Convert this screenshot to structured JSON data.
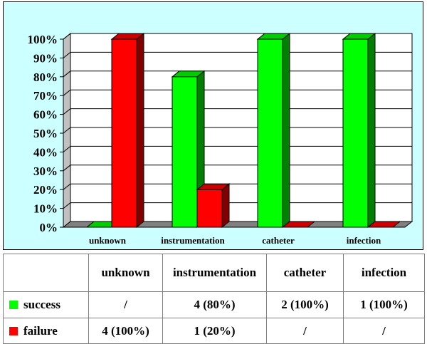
{
  "chart_data": {
    "type": "bar",
    "categories": [
      "unknown",
      "instrumentation",
      "catheter",
      "infection"
    ],
    "series": [
      {
        "name": "success",
        "values": [
          0,
          80,
          100,
          100
        ],
        "color": "#00ff00",
        "side_color": "#008000",
        "top_color": "#00cc00"
      },
      {
        "name": "failure",
        "values": [
          100,
          20,
          0,
          0
        ],
        "color": "#ff0000",
        "side_color": "#800000",
        "top_color": "#cc0000"
      }
    ],
    "y_ticks": [
      "0%",
      "10%",
      "20%",
      "30%",
      "40%",
      "50%",
      "60%",
      "70%",
      "80%",
      "90%",
      "100%"
    ],
    "ylim": [
      0,
      100
    ],
    "grid": true,
    "wall_color": "#ffffff",
    "floor_color": "#808080"
  },
  "table": {
    "header": [
      "",
      "unknown",
      "instrumentation",
      "catheter",
      "infection"
    ],
    "rows": [
      {
        "label": "success",
        "color": "#00ff00",
        "cells": [
          "/",
          "4 (80%)",
          "2 (100%)",
          "1 (100%)"
        ]
      },
      {
        "label": "failure",
        "color": "#ff0000",
        "cells": [
          "4 (100%)",
          "1 (20%)",
          "/",
          "/"
        ]
      }
    ]
  }
}
